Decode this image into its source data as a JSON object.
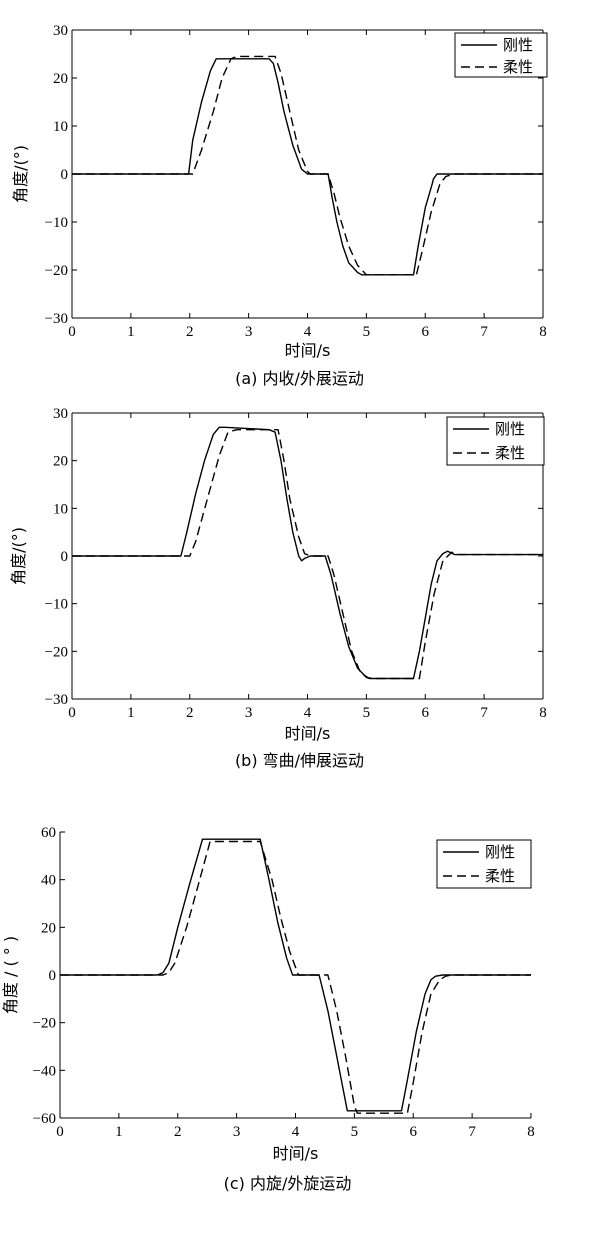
{
  "chart_data": [
    {
      "type": "line",
      "caption": "(a) 内收/外展运动",
      "xlabel": "时间/s",
      "ylabel": "角度/(°)",
      "xlim": [
        0,
        8
      ],
      "ylim": [
        -30,
        30
      ],
      "xticks": [
        0,
        1,
        2,
        3,
        4,
        5,
        6,
        7,
        8
      ],
      "yticks": [
        30,
        20,
        10,
        0,
        -10,
        -20,
        -30
      ],
      "legend_position": "top-right",
      "series": [
        {
          "name": "刚性",
          "style": "solid",
          "x": [
            0,
            1.98,
            2.05,
            2.2,
            2.35,
            2.45,
            2.5,
            3.35,
            3.42,
            3.5,
            3.6,
            3.75,
            3.9,
            4.0,
            4.35,
            4.42,
            4.5,
            4.6,
            4.7,
            4.85,
            4.92,
            5.0,
            5.8,
            5.88,
            6.0,
            6.12,
            6.14,
            6.2,
            6.3,
            6.45,
            8
          ],
          "y": [
            0,
            0,
            7,
            15,
            21.5,
            24,
            24,
            24,
            23,
            19,
            13,
            6,
            1,
            0,
            0,
            -5,
            -10,
            -15,
            -18.5,
            -20.5,
            -21,
            -21,
            -21,
            -15,
            -7,
            -2,
            -1,
            0,
            0,
            0,
            0
          ]
        },
        {
          "name": "柔性",
          "style": "dashed",
          "x": [
            0,
            2.05,
            2.2,
            2.4,
            2.55,
            2.7,
            2.8,
            3.45,
            3.55,
            3.7,
            3.85,
            4.0,
            4.05,
            4.35,
            4.45,
            4.55,
            4.7,
            4.85,
            5.0,
            5.15,
            5.25,
            5.85,
            5.95,
            6.1,
            6.25,
            6.35,
            6.5,
            8
          ],
          "y": [
            0,
            0,
            5,
            13,
            20,
            24,
            24.5,
            24.5,
            21,
            13,
            5,
            0.5,
            0,
            0,
            -4,
            -9,
            -15,
            -19,
            -21,
            -21,
            -21,
            -21,
            -16,
            -8,
            -2,
            -0.5,
            0,
            0
          ]
        }
      ]
    },
    {
      "type": "line",
      "caption": "(b) 弯曲/伸展运动",
      "xlabel": "时间/s",
      "ylabel": "角度/(°)",
      "xlim": [
        0,
        8
      ],
      "ylim": [
        -30,
        30
      ],
      "xticks": [
        0,
        1,
        2,
        3,
        4,
        5,
        6,
        7,
        8
      ],
      "yticks": [
        30,
        20,
        10,
        0,
        -10,
        -20,
        -30
      ],
      "legend_position": "top-right",
      "series": [
        {
          "name": "刚性",
          "style": "solid",
          "x": [
            0,
            1.85,
            1.95,
            2.1,
            2.25,
            2.4,
            2.5,
            2.6,
            3.35,
            3.45,
            3.55,
            3.65,
            3.75,
            3.85,
            3.9,
            3.95,
            4.05,
            4.3,
            4.4,
            4.55,
            4.7,
            4.85,
            5.0,
            5.1,
            5.8,
            5.9,
            6.0,
            6.1,
            6.2,
            6.3,
            6.38,
            6.5,
            8
          ],
          "y": [
            0,
            0,
            5,
            13,
            20,
            25.5,
            27,
            27,
            26.5,
            26,
            20,
            12,
            5,
            0,
            -1,
            -0.5,
            0,
            0,
            -4,
            -12,
            -19,
            -23.5,
            -25.5,
            -25.7,
            -25.7,
            -20,
            -13,
            -6,
            -1,
            0.5,
            1,
            0.3,
            0.3
          ]
        },
        {
          "name": "柔性",
          "style": "dashed",
          "x": [
            0,
            2.0,
            2.1,
            2.3,
            2.5,
            2.65,
            2.8,
            3.5,
            3.6,
            3.7,
            3.85,
            3.95,
            4.05,
            4.35,
            4.45,
            4.6,
            4.75,
            4.9,
            5.05,
            5.2,
            5.9,
            6.0,
            6.15,
            6.3,
            6.45,
            6.55,
            8
          ],
          "y": [
            0,
            0,
            3,
            12,
            21,
            26,
            26.5,
            26.5,
            20,
            12,
            4,
            0.5,
            0,
            0,
            -4,
            -12,
            -20,
            -24.5,
            -25.7,
            -25.7,
            -25.7,
            -18,
            -8,
            -1,
            0.8,
            0.3,
            0.3
          ]
        }
      ]
    },
    {
      "type": "line",
      "caption": "(c) 内旋/外旋运动",
      "xlabel": "时间/s",
      "ylabel": "角度 / ( ° )",
      "xlim": [
        0,
        8
      ],
      "ylim": [
        -60,
        60
      ],
      "xticks": [
        0,
        1,
        2,
        3,
        4,
        5,
        6,
        7,
        8
      ],
      "yticks": [
        60,
        40,
        20,
        0,
        -20,
        -40,
        -60
      ],
      "legend_position": "top-right",
      "series": [
        {
          "name": "刚性",
          "style": "solid",
          "x": [
            0,
            1.65,
            1.75,
            1.85,
            2.0,
            2.2,
            2.42,
            3.4,
            3.55,
            3.7,
            3.85,
            3.95,
            4.4,
            4.55,
            4.7,
            4.88,
            5.8,
            5.9,
            6.05,
            6.2,
            6.3,
            6.38,
            6.5,
            8
          ],
          "y": [
            0,
            0,
            1,
            5,
            20,
            38,
            57,
            57,
            40,
            22,
            7,
            0,
            0,
            -15,
            -34,
            -57,
            -57,
            -44,
            -24,
            -8,
            -2,
            -0.5,
            0,
            0
          ]
        },
        {
          "name": "柔性",
          "style": "dashed",
          "x": [
            0,
            1.75,
            1.85,
            1.95,
            2.15,
            2.35,
            2.55,
            3.4,
            3.6,
            3.75,
            3.9,
            4.05,
            4.55,
            4.7,
            4.85,
            5.0,
            5.05,
            5.9,
            6.0,
            6.15,
            6.3,
            6.45,
            6.55,
            6.65,
            8
          ],
          "y": [
            0,
            0,
            1,
            5,
            20,
            38,
            56,
            56,
            40,
            24,
            10,
            0,
            0,
            -15,
            -34,
            -55,
            -58,
            -58,
            -45,
            -24,
            -8,
            -2,
            -0.5,
            0,
            0
          ]
        }
      ]
    }
  ]
}
